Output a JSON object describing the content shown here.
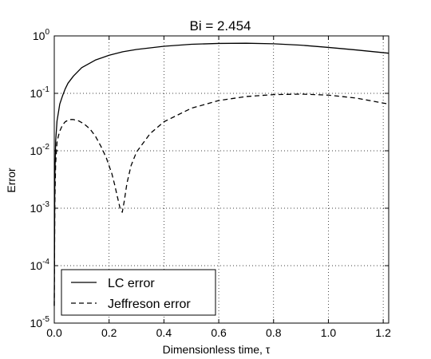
{
  "chart_data": {
    "type": "line",
    "title": "Bi = 2.454",
    "xlabel": "Dimensionless time, τ",
    "ylabel": "Error",
    "xscale": "linear",
    "yscale": "log",
    "xlim": [
      0,
      1.22
    ],
    "ylim": [
      1e-05,
      1
    ],
    "grid": true,
    "legend_position": "bottom-left",
    "x_ticks": [
      {
        "value": 0.0,
        "label": "0.0"
      },
      {
        "value": 0.2,
        "label": "0.2"
      },
      {
        "value": 0.4,
        "label": "0.4"
      },
      {
        "value": 0.6,
        "label": "0.6"
      },
      {
        "value": 0.8,
        "label": "0.8"
      },
      {
        "value": 1.0,
        "label": "1.0"
      },
      {
        "value": 1.2,
        "label": "1.2"
      }
    ],
    "y_ticks": [
      {
        "value": 1,
        "base": "10",
        "exp": "0"
      },
      {
        "value": 0.1,
        "base": "10",
        "exp": "-1"
      },
      {
        "value": 0.01,
        "base": "10",
        "exp": "-2"
      },
      {
        "value": 0.001,
        "base": "10",
        "exp": "-3"
      },
      {
        "value": 0.0001,
        "base": "10",
        "exp": "-4"
      },
      {
        "value": 1e-05,
        "base": "10",
        "exp": "-5"
      }
    ],
    "series": [
      {
        "name": "LC error",
        "line_style": "solid",
        "color": "#000000",
        "x": [
          0.0,
          0.002,
          0.005,
          0.01,
          0.015,
          0.02,
          0.03,
          0.04,
          0.05,
          0.07,
          0.1,
          0.15,
          0.2,
          0.25,
          0.3,
          0.4,
          0.5,
          0.6,
          0.7,
          0.8,
          0.9,
          1.0,
          1.1,
          1.22
        ],
        "y": [
          2e-05,
          0.0032,
          0.0145,
          0.033,
          0.046,
          0.065,
          0.09,
          0.12,
          0.15,
          0.2,
          0.28,
          0.38,
          0.46,
          0.53,
          0.58,
          0.66,
          0.715,
          0.74,
          0.745,
          0.73,
          0.69,
          0.63,
          0.57,
          0.5
        ]
      },
      {
        "name": "Jeffreson error",
        "line_style": "dashed",
        "color": "#000000",
        "x": [
          0.0,
          0.002,
          0.005,
          0.01,
          0.015,
          0.02,
          0.03,
          0.04,
          0.05,
          0.06,
          0.07,
          0.09,
          0.11,
          0.13,
          0.15,
          0.17,
          0.19,
          0.21,
          0.22,
          0.23,
          0.24,
          0.248,
          0.255,
          0.265,
          0.28,
          0.3,
          0.35,
          0.4,
          0.5,
          0.6,
          0.7,
          0.8,
          0.9,
          1.0,
          1.1,
          1.22
        ],
        "y": [
          2e-05,
          0.0012,
          0.006,
          0.014,
          0.018,
          0.022,
          0.028,
          0.032,
          0.034,
          0.035,
          0.035,
          0.033,
          0.029,
          0.024,
          0.018,
          0.012,
          0.0075,
          0.004,
          0.0026,
          0.0016,
          0.001,
          0.00085,
          0.0013,
          0.0027,
          0.0055,
          0.0095,
          0.02,
          0.032,
          0.055,
          0.075,
          0.088,
          0.095,
          0.097,
          0.093,
          0.083,
          0.065
        ]
      }
    ]
  }
}
